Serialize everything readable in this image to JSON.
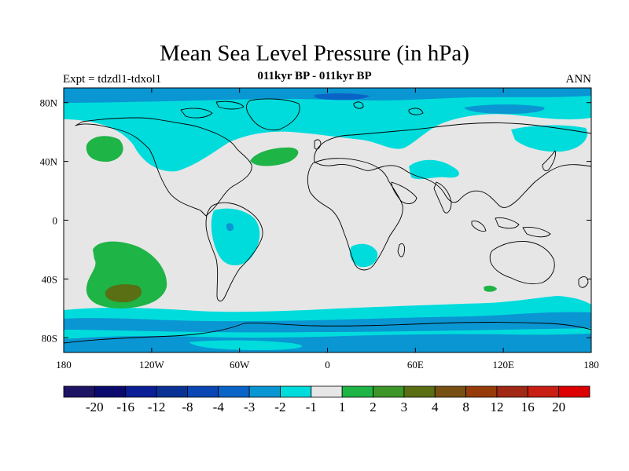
{
  "header": {
    "title": "Mean Sea Level Pressure (in hPa)",
    "subtitle": "011kyr BP - 011kyr BP",
    "experiment": "Expt = tdzdl1-tdxol1",
    "season": "ANN"
  },
  "map": {
    "lon_range": [
      -180,
      180
    ],
    "lat_range": [
      -90,
      90
    ],
    "lon_ticks": [
      {
        "value": -180,
        "label": "180"
      },
      {
        "value": -120,
        "label": "120W"
      },
      {
        "value": -60,
        "label": "60W"
      },
      {
        "value": 0,
        "label": "0"
      },
      {
        "value": 60,
        "label": "60E"
      },
      {
        "value": 120,
        "label": "120E"
      },
      {
        "value": 180,
        "label": "180"
      }
    ],
    "lat_ticks": [
      {
        "value": 80,
        "label": "80N"
      },
      {
        "value": 40,
        "label": "40N"
      },
      {
        "value": 0,
        "label": "0"
      },
      {
        "value": -40,
        "label": "40S"
      },
      {
        "value": -80,
        "label": "80S"
      }
    ],
    "background_color": "#e6e6e6",
    "coastline_color": "#000000"
  },
  "colorbar": {
    "colors": [
      "#1e1464",
      "#0a0a6e",
      "#0a1e96",
      "#0a3296",
      "#0a46b4",
      "#0a64c8",
      "#0a96d2",
      "#00dcdc",
      "#e6e6e6",
      "#1eb446",
      "#3c9628",
      "#5a6e14",
      "#785014",
      "#963c0a",
      "#a02814",
      "#c81e14",
      "#dc0000"
    ],
    "labels": [
      "-20",
      "-16",
      "-12",
      "-8",
      "-4",
      "-3",
      "-2",
      "-1",
      "1",
      "2",
      "3",
      "4",
      "8",
      "12",
      "16",
      "20"
    ]
  }
}
